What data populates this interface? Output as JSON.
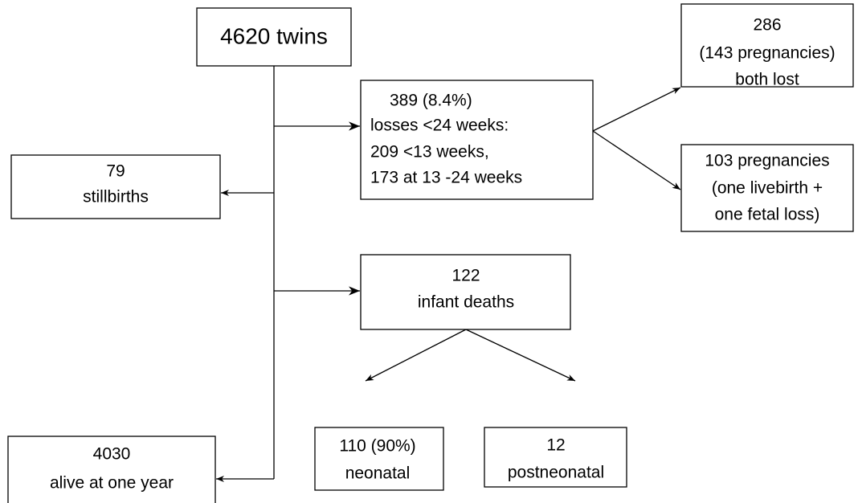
{
  "nodes": [
    {
      "lines": [
        "4620 twins"
      ]
    },
    {
      "lines": [
        "389  (8.4%)",
        "losses <24 weeks:",
        "209 <13 weeks,",
        "173 at 13 -24 weeks"
      ]
    },
    {
      "lines": [
        "286",
        "(143 pregnancies)",
        "both lost"
      ]
    },
    {
      "lines": [
        "103 pregnancies",
        "(one livebirth +",
        "one fetal loss)"
      ]
    },
    {
      "lines": [
        "79",
        "stillbirths"
      ]
    },
    {
      "lines": [
        "122",
        "infant deaths"
      ]
    },
    {
      "lines": [
        "110 (90%)",
        "neonatal"
      ]
    },
    {
      "lines": [
        "12",
        "postneonatal"
      ]
    },
    {
      "lines": [
        "4030",
        "alive at  one year"
      ]
    }
  ]
}
